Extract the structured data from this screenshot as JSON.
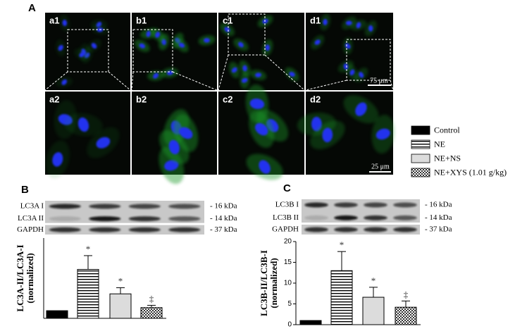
{
  "panel_a": {
    "letter": "A",
    "row1": [
      "a1",
      "b1",
      "c1",
      "d1"
    ],
    "row2": [
      "a2",
      "b2",
      "c2",
      "d2"
    ],
    "scale_top": "75 μm",
    "scale_bottom": "25 μm"
  },
  "legend": [
    {
      "label": "Control",
      "pattern": "solid"
    },
    {
      "label": "NE",
      "pattern": "stripes"
    },
    {
      "label": "NE+NS",
      "pattern": "light"
    },
    {
      "label": "NE+XYS (1.01 g/kg)",
      "pattern": "checker"
    }
  ],
  "chart_data": [
    {
      "type": "bar",
      "letter": "B",
      "blot": {
        "labels": [
          "LC3A I",
          "LC3A II",
          "GAPDH"
        ],
        "sizes": [
          "- 16 kDa",
          "- 14 kDa",
          "- 37 kDa"
        ]
      },
      "ylabel": [
        "LC3A-II/LC3A-I",
        "(normalized)"
      ],
      "categories": [
        null,
        null,
        null,
        null
      ],
      "values": [
        1,
        6.4,
        3.2,
        1.4
      ],
      "errors": [
        0,
        1.8,
        0.8,
        0.3
      ],
      "annotations": [
        null,
        "*",
        "*",
        "‡"
      ],
      "ylim": [
        0,
        10.5
      ]
    },
    {
      "type": "bar",
      "letter": "C",
      "blot": {
        "labels": [
          "LC3B I",
          "LC3B II",
          "GAPDH"
        ],
        "sizes": [
          "- 16 kDa",
          "- 14 kDa",
          "- 37 kDa"
        ]
      },
      "ylabel": [
        "LC3B-II/LC3B-I",
        "(normalized)"
      ],
      "categories": [
        null,
        null,
        null,
        null
      ],
      "values": [
        1,
        13,
        6.6,
        4.2
      ],
      "errors": [
        0,
        4.6,
        2.4,
        1.5
      ],
      "annotations": [
        null,
        "*",
        "*",
        "‡"
      ],
      "ylim": [
        0,
        20
      ],
      "yticks": [
        0,
        5,
        10,
        15,
        20
      ]
    }
  ]
}
